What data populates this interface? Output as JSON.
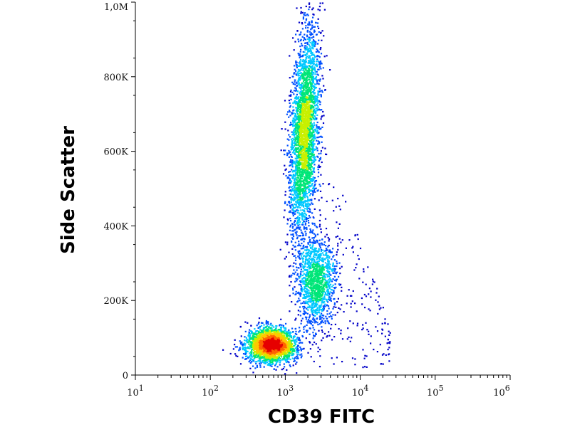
{
  "chart_data": {
    "type": "scatter",
    "style": "density-dot-plot",
    "title": "",
    "xlabel": "CD39 FITC",
    "ylabel": "Side Scatter",
    "x_scale": "log",
    "y_scale": "linear",
    "xlim": [
      10,
      1000000
    ],
    "ylim": [
      0,
      1000000
    ],
    "x_ticks": [
      {
        "value": 10,
        "base": "10",
        "exp": "1"
      },
      {
        "value": 100,
        "base": "10",
        "exp": "2"
      },
      {
        "value": 1000,
        "base": "10",
        "exp": "3"
      },
      {
        "value": 10000,
        "base": "10",
        "exp": "4"
      },
      {
        "value": 100000,
        "base": "10",
        "exp": "5"
      },
      {
        "value": 1000000,
        "base": "10",
        "exp": "6"
      }
    ],
    "y_ticks": [
      {
        "value": 0,
        "label": "0"
      },
      {
        "value": 200000,
        "label": "200K"
      },
      {
        "value": 400000,
        "label": "400K"
      },
      {
        "value": 600000,
        "label": "600K"
      },
      {
        "value": 800000,
        "label": "800K"
      },
      {
        "value": 1000000,
        "label": "1,0M"
      }
    ],
    "populations": [
      {
        "center_x": 650,
        "center_y": 80000,
        "spread_log_x": 0.16,
        "spread_y": 22000,
        "count": 2600,
        "peak_density": "high"
      },
      {
        "center_x": 1800,
        "center_y": 650000,
        "spread_log_x": 0.09,
        "spread_y": 140000,
        "count": 3200,
        "peak_density": "medium"
      },
      {
        "center_x": 2600,
        "center_y": 250000,
        "spread_log_x": 0.13,
        "spread_y": 60000,
        "count": 1300,
        "peak_density": "low"
      }
    ],
    "colormap": [
      "#0000c8",
      "#0050ff",
      "#00c8ff",
      "#00e678",
      "#c8f000",
      "#ffc800",
      "#ff6400",
      "#e60000"
    ]
  }
}
